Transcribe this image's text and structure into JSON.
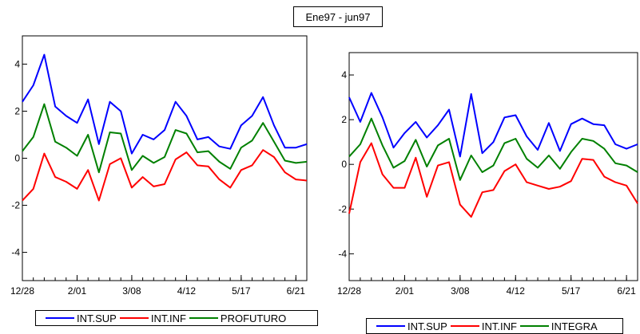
{
  "figure_title": "Ene97 - jun97",
  "colors": {
    "sup": "#0000ff",
    "inf": "#ff0000",
    "mid": "#008000",
    "axis": "#000000"
  },
  "chart_data": [
    {
      "type": "line",
      "title": "",
      "xlabel": "",
      "ylabel": "",
      "ylim": [
        -5.2,
        5.2
      ],
      "yticks": [
        -4,
        -2,
        0,
        2,
        4
      ],
      "grid": false,
      "legend_position": "bottom",
      "x_tick_labels": [
        "12/28",
        "2/01",
        "3/08",
        "4/12",
        "5/17",
        "6/21"
      ],
      "x_tick_index": [
        0,
        5,
        10,
        15,
        20,
        25
      ],
      "series": [
        {
          "name": "INT.SUP",
          "color": "#0000ff",
          "values": [
            2.4,
            3.1,
            4.4,
            2.2,
            1.8,
            1.5,
            2.5,
            0.6,
            2.4,
            2.0,
            0.2,
            1.0,
            0.8,
            1.2,
            2.4,
            1.8,
            0.8,
            0.9,
            0.5,
            0.4,
            1.4,
            1.8,
            2.6,
            1.4,
            0.45,
            0.45,
            0.6
          ]
        },
        {
          "name": "INT.INF",
          "color": "#ff0000",
          "values": [
            -1.8,
            -1.3,
            0.2,
            -0.8,
            -1.0,
            -1.3,
            -0.5,
            -1.8,
            -0.25,
            0.0,
            -1.25,
            -0.8,
            -1.2,
            -1.1,
            -0.05,
            0.25,
            -0.3,
            -0.35,
            -0.9,
            -1.25,
            -0.5,
            -0.3,
            0.35,
            0.05,
            -0.6,
            -0.9,
            -0.95
          ]
        },
        {
          "name": "PROFUTURO",
          "color": "#008000",
          "values": [
            0.3,
            0.9,
            2.3,
            0.7,
            0.45,
            0.1,
            1.0,
            -0.6,
            1.1,
            1.05,
            -0.5,
            0.1,
            -0.2,
            0.05,
            1.2,
            1.05,
            0.25,
            0.3,
            -0.15,
            -0.45,
            0.45,
            0.75,
            1.5,
            0.7,
            -0.1,
            -0.2,
            -0.15
          ]
        }
      ]
    },
    {
      "type": "line",
      "title": "",
      "xlabel": "",
      "ylabel": "",
      "ylim": [
        -5.2,
        5.0
      ],
      "yticks": [
        -4,
        -2,
        0,
        2,
        4
      ],
      "grid": false,
      "legend_position": "bottom",
      "x_tick_labels": [
        "12/28",
        "2/01",
        "3/08",
        "4/12",
        "5/17",
        "6/21"
      ],
      "x_tick_index": [
        0,
        5,
        10,
        15,
        20,
        25
      ],
      "series": [
        {
          "name": "INT.SUP",
          "color": "#0000ff",
          "values": [
            3.0,
            1.9,
            3.2,
            2.1,
            0.75,
            1.4,
            1.9,
            1.2,
            1.75,
            2.45,
            0.35,
            3.15,
            0.5,
            1.0,
            2.1,
            2.2,
            1.25,
            0.65,
            1.85,
            0.6,
            1.8,
            2.05,
            1.8,
            1.75,
            0.9,
            0.7,
            0.9
          ]
        },
        {
          "name": "INT.INF",
          "color": "#ff0000",
          "values": [
            -2.2,
            0.1,
            0.95,
            -0.45,
            -1.05,
            -1.05,
            0.3,
            -1.45,
            -0.05,
            0.1,
            -1.8,
            -2.35,
            -1.25,
            -1.15,
            -0.3,
            0.0,
            -0.8,
            -0.95,
            -1.1,
            -1.0,
            -0.75,
            0.25,
            0.2,
            -0.55,
            -0.8,
            -0.95,
            -1.75
          ]
        },
        {
          "name": "INTEGRA",
          "color": "#008000",
          "values": [
            0.35,
            0.9,
            2.05,
            0.85,
            -0.15,
            0.15,
            1.1,
            -0.1,
            0.85,
            1.15,
            -0.7,
            0.4,
            -0.35,
            -0.05,
            0.95,
            1.15,
            0.25,
            -0.15,
            0.4,
            -0.2,
            0.55,
            1.15,
            1.05,
            0.7,
            0.05,
            -0.05,
            -0.35
          ]
        }
      ]
    }
  ]
}
